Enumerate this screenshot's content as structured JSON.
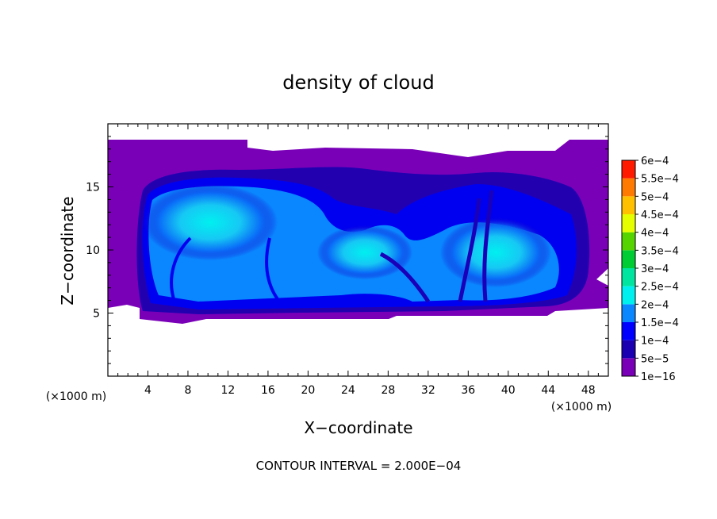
{
  "chart_data": {
    "type": "heatmap",
    "title": "density of cloud",
    "xlabel": "X−coordinate",
    "ylabel": "Z−coordinate",
    "x_unit_label": "(×1000 m)",
    "z_unit_label": "(×1000 m)",
    "xlim": [
      0,
      50
    ],
    "ylim": [
      0,
      20
    ],
    "x_ticks": [
      4,
      8,
      12,
      16,
      20,
      24,
      28,
      32,
      36,
      40,
      44,
      48
    ],
    "y_ticks": [
      5,
      10,
      15
    ],
    "footer": "CONTOUR INTERVAL = 2.000E−04",
    "colorbar": {
      "levels": [
        "1e−16",
        "5e−5",
        "1e−4",
        "1.5e−4",
        "2e−4",
        "2.5e−4",
        "3e−4",
        "3.5e−4",
        "4e−4",
        "4.5e−4",
        "5e−4",
        "5.5e−4",
        "6e−4"
      ],
      "colors": [
        "#7a00b8",
        "#1a00b0",
        "#0000ff",
        "#0a86ff",
        "#00f0f0",
        "#00e6a0",
        "#00cc33",
        "#55d400",
        "#e6ff00",
        "#ffc000",
        "#ff7a00",
        "#ff1a00",
        "#ff8a8a"
      ]
    },
    "cloud_field": {
      "description_levels": "values shown by color; key features below in data units",
      "cloud_band_z": [
        4.5,
        18.8
      ],
      "cores": [
        {
          "x": 10,
          "z": 12.5,
          "value": 0.00022
        },
        {
          "x": 20,
          "z": 10.5,
          "value": 0.00018
        },
        {
          "x": 27,
          "z": 11,
          "value": 0.00018
        },
        {
          "x": 39,
          "z": 10,
          "value": 0.00021
        }
      ]
    }
  }
}
